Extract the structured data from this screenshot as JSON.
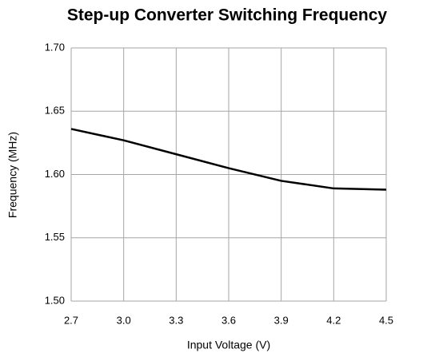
{
  "chart_data": {
    "type": "line",
    "title": "Step-up Converter Switching Frequency",
    "x_label": "Input Voltage (V)",
    "y_label": "Frequency (MHz)",
    "x": [
      2.7,
      3.0,
      3.3,
      3.6,
      3.9,
      4.2,
      4.5
    ],
    "series": [
      {
        "name": "Frequency",
        "color": "#000000",
        "values": [
          1.636,
          1.627,
          1.616,
          1.605,
          1.595,
          1.589,
          1.588
        ]
      }
    ],
    "xlim": [
      2.7,
      4.5
    ],
    "xticks": [
      2.7,
      {
        "value": 3,
        "label": "3.0"
      },
      3.3,
      3.6,
      3.9,
      4.2,
      4.5
    ],
    "ylim": [
      1.5,
      1.7
    ],
    "yticks": [
      {
        "value": 1.5,
        "label": "1.50"
      },
      1.55,
      {
        "value": 1.6,
        "label": "1.60"
      },
      1.65,
      {
        "value": 1.7,
        "label": "1.70"
      }
    ],
    "grid": true
  }
}
